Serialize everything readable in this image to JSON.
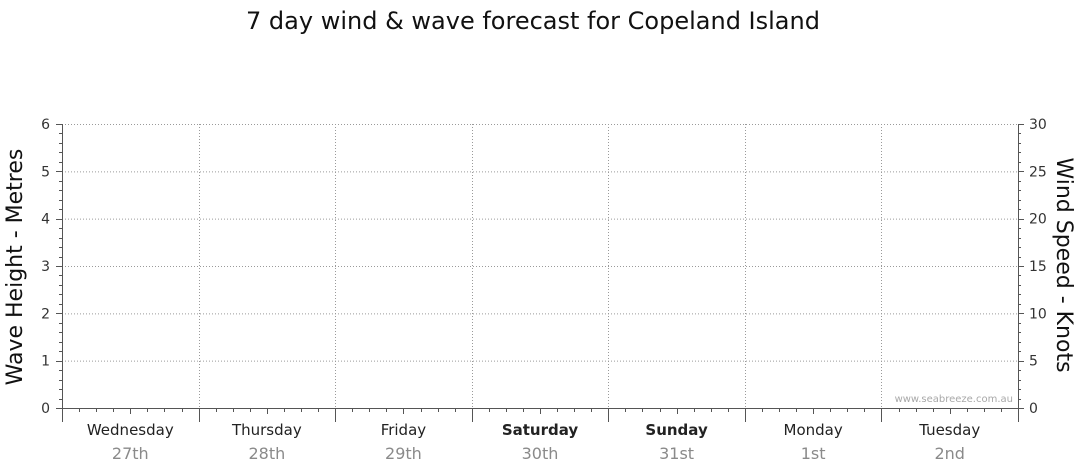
{
  "chart_data": {
    "type": "line",
    "title": "7 day wind & wave forecast for Copeland Island",
    "ylabel_left": "Wave Height - Metres",
    "ylabel_right": "Wind Speed - Knots",
    "ylim_left": [
      0,
      6
    ],
    "ylim_right": [
      0,
      30
    ],
    "yticks_left": [
      "0",
      "1",
      "2",
      "3",
      "4",
      "5",
      "6"
    ],
    "yticks_right": [
      "0",
      "5",
      "10",
      "15",
      "20",
      "25",
      "30"
    ],
    "grid": true,
    "days": [
      {
        "name": "Wednesday",
        "date": "27th",
        "bold": false
      },
      {
        "name": "Thursday",
        "date": "28th",
        "bold": false
      },
      {
        "name": "Friday",
        "date": "29th",
        "bold": false
      },
      {
        "name": "Saturday",
        "date": "30th",
        "bold": true
      },
      {
        "name": "Sunday",
        "date": "31st",
        "bold": true
      },
      {
        "name": "Monday",
        "date": "1st",
        "bold": false
      },
      {
        "name": "Tuesday",
        "date": "2nd",
        "bold": false
      }
    ],
    "series": [],
    "watermark": "www.seabreeze.com.au"
  }
}
